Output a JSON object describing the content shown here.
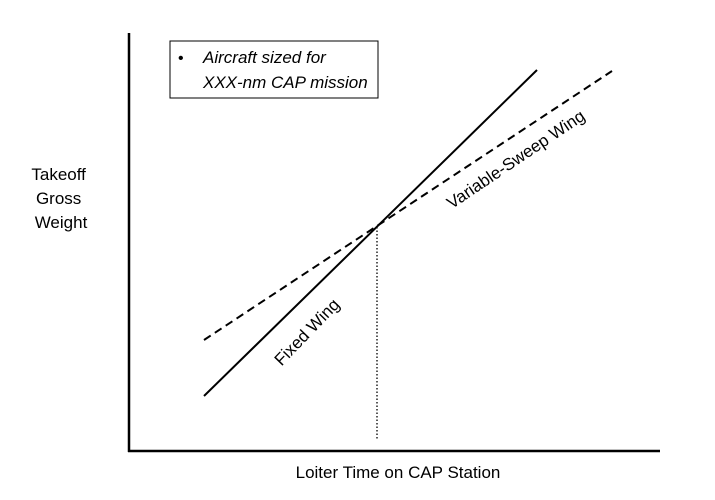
{
  "diagram": {
    "y_axis_label": [
      "Takeoff",
      "Gross",
      "Weight"
    ],
    "x_axis_label": "Loiter Time on CAP Station",
    "note": {
      "bullet": "•",
      "lines": [
        "Aircraft sized for",
        "XXX-nm CAP mission"
      ]
    },
    "curves": {
      "fixed_wing_label": "Fixed Wing",
      "variable_sweep_label": "Variable-Sweep Wing"
    },
    "colors": {
      "line": "#000000",
      "background": "#ffffff"
    }
  }
}
